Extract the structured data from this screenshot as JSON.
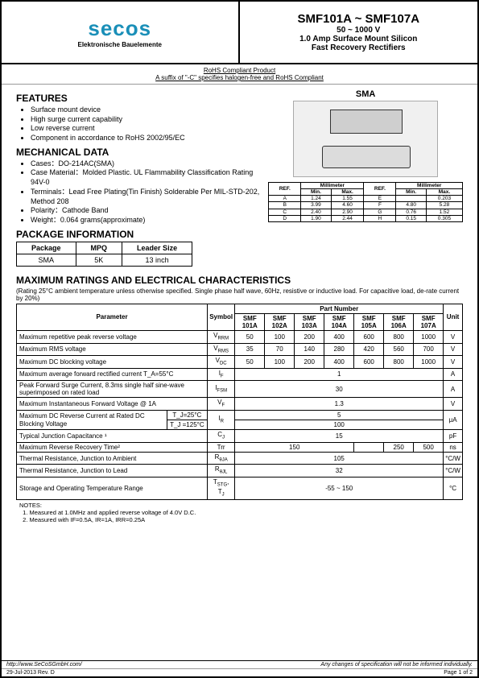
{
  "header": {
    "logo_text": "secos",
    "logo_sub": "Elektronische Bauelemente",
    "title_main": "SMF101A ~ SMF107A",
    "title_v": "50 ~ 1000 V",
    "title_desc1": "1.0 Amp Surface Mount Silicon",
    "title_desc2": "Fast Recovery Rectifiers"
  },
  "rohs": {
    "line1": "RoHS Compliant Product",
    "line2": "A suffix of \"-C\" specifies halogen-free and RoHS Compliant"
  },
  "features": {
    "title": "FEATURES",
    "items": [
      "Surface mount device",
      "High surge current capability",
      "Low reverse current",
      "Component in accordance to RoHS 2002/95/EC"
    ]
  },
  "mechanical": {
    "title": "MECHANICAL DATA",
    "items": [
      "Cases：DO-214AC(SMA)",
      "Case Material：Molded Plastic. UL Flammability Classification Rating 94V-0",
      "Terminals：Lead Free Plating(Tin Finish) Solderable Per MIL-STD-202, Method 208",
      "Polarity：Cathode Band",
      "Weight：0.064 grams(approximate)"
    ]
  },
  "sma_label": "SMA",
  "dim_table": {
    "header": [
      "REF.",
      "Min.",
      "Max.",
      "REF.",
      "Min.",
      "Max."
    ],
    "header_group": "Millimeter",
    "rows": [
      [
        "A",
        "1.24",
        "1.55",
        "E",
        "",
        "0.203"
      ],
      [
        "B",
        "3.99",
        "4.60",
        "F",
        "4.80",
        "5.28"
      ],
      [
        "C",
        "2.40",
        "2.90",
        "G",
        "0.76",
        "1.52"
      ],
      [
        "D",
        "1.90",
        "2.44",
        "H",
        "0.15",
        "0.305"
      ]
    ]
  },
  "pkg_info": {
    "title": "PACKAGE INFORMATION",
    "headers": [
      "Package",
      "MPQ",
      "Leader Size"
    ],
    "row": [
      "SMA",
      "5K",
      "13 inch"
    ]
  },
  "ratings": {
    "title": "MAXIMUM RATINGS AND ELECTRICAL CHARACTERISTICS",
    "note": "(Rating 25°C ambient temperature unless otherwise specified. Single phase half wave, 60Hz, resistive or inductive load. For capacitive load, de-rate current by 20%)",
    "headers": {
      "param": "Parameter",
      "symbol": "Symbol",
      "part": "Part Number",
      "unit": "Unit",
      "parts": [
        "SMF 101A",
        "SMF 102A",
        "SMF 103A",
        "SMF 104A",
        "SMF 105A",
        "SMF 106A",
        "SMF 107A"
      ]
    },
    "rows": [
      {
        "param": "Maximum repetitive peak reverse voltage",
        "sym": "V_RRM",
        "vals": [
          "50",
          "100",
          "200",
          "400",
          "600",
          "800",
          "1000"
        ],
        "unit": "V"
      },
      {
        "param": "Maximum RMS voltage",
        "sym": "V_RMS",
        "vals": [
          "35",
          "70",
          "140",
          "280",
          "420",
          "560",
          "700"
        ],
        "unit": "V"
      },
      {
        "param": "Maximum DC blocking voltage",
        "sym": "V_DC",
        "vals": [
          "50",
          "100",
          "200",
          "400",
          "600",
          "800",
          "1000"
        ],
        "unit": "V"
      },
      {
        "param": "Maximum average forward rectified current T_A=55°C",
        "sym": "I_F",
        "span": "1",
        "unit": "A"
      },
      {
        "param": "Peak Forward Surge Current, 8.3ms single half sine-wave superimposed on rated load",
        "sym": "I_FSM",
        "span": "30",
        "unit": "A"
      },
      {
        "param": "Maximum Instantaneous Forward Voltage @ 1A",
        "sym": "V_F",
        "span": "1.3",
        "unit": "V"
      },
      {
        "param": "Maximum DC Reverse Current at Rated DC Blocking Voltage",
        "cond1": "T_J=25°C",
        "cond2": "T_J =125°C",
        "sym": "I_R",
        "span1": "5",
        "span2": "100",
        "unit": "μA"
      },
      {
        "param": "Typical Junction Capacitance ¹",
        "sym": "C_J",
        "span": "15",
        "unit": "pF"
      },
      {
        "param": "Maximum Reverse Recovery Time²",
        "sym": "Trr",
        "vals_grouped": [
          {
            "span": 4,
            "val": "150"
          },
          {
            "span": 1,
            "val": ""
          },
          {
            "span": 1,
            "val": "250"
          },
          {
            "span": 1,
            "val": "500"
          }
        ],
        "unit": "ns"
      },
      {
        "param": "Thermal Resistance, Junction to Ambient",
        "sym": "R_θJA",
        "span": "105",
        "unit": "°C/W"
      },
      {
        "param": "Thermal Resistance, Junction to Lead",
        "sym": "R_θJL",
        "span": "32",
        "unit": "°C/W"
      },
      {
        "param": "Storage and Operating Temperature Range",
        "sym": "T_STG, T_J",
        "span": "-55 ~ 150",
        "unit": "°C"
      }
    ],
    "notes_title": "NOTES:",
    "notes": [
      "1. Measured at 1.0MHz and applied reverse voltage of 4.0V D.C.",
      "2. Measured with IF=0.5A, IR=1A, IRR=0.25A"
    ]
  },
  "footer": {
    "url": "http://www.SeCoSGmbH.com/",
    "disclaimer": "Any changes of specification will not be informed individually.",
    "date": "29-Jul-2013 Rev. D",
    "page": "Page 1 of 2"
  }
}
